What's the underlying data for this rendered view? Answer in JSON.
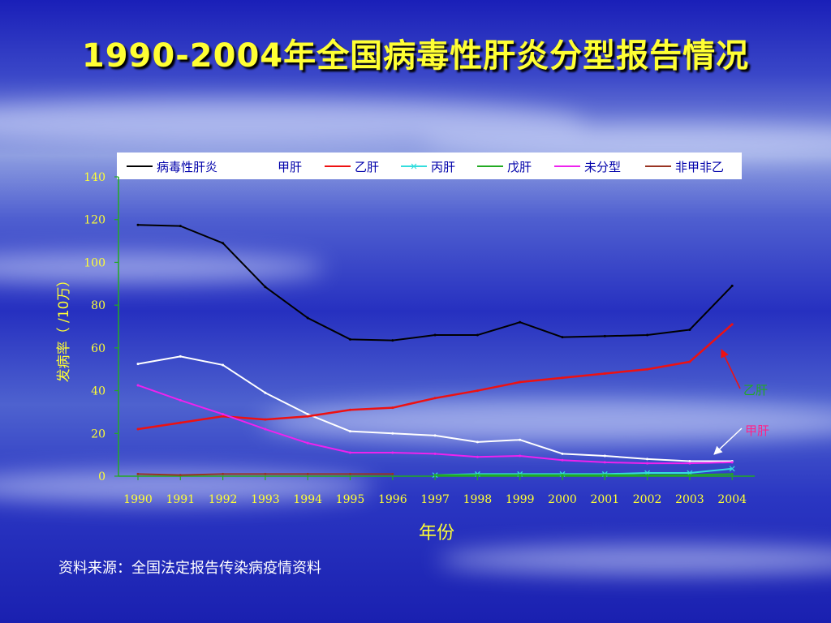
{
  "slide": {
    "title": "1990-2004年全国病毒性肝炎分型报告情况",
    "source": "资料来源：全国法定报告传染病疫情资料"
  },
  "colors": {
    "title": "#ffff33",
    "axis": "#22aa22",
    "tick_label": "#ffff33",
    "annotation": "#ff2288"
  },
  "chart_data": {
    "type": "line",
    "xlabel": "年份",
    "ylabel": "发病率（ /10万）",
    "ylim": [
      0,
      140
    ],
    "yticks": [
      0,
      20,
      40,
      60,
      80,
      100,
      120,
      140
    ],
    "categories": [
      "1990",
      "1991",
      "1992",
      "1993",
      "1994",
      "1995",
      "1996",
      "1997",
      "1998",
      "1999",
      "2000",
      "2001",
      "2002",
      "2003",
      "2004"
    ],
    "legend_position": "top",
    "grid": false,
    "series": [
      {
        "name": "病毒性肝炎",
        "color": "#000000",
        "marker": "none",
        "values": [
          117.5,
          117,
          109,
          88.5,
          74,
          64,
          63.5,
          66,
          66,
          72,
          65,
          65.5,
          66,
          68.5,
          89
        ]
      },
      {
        "name": "甲肝",
        "color": "#ffffff",
        "marker": "none",
        "values": [
          52.5,
          56,
          52,
          39,
          29,
          21,
          20,
          19,
          16,
          17,
          10.5,
          9.5,
          8,
          7,
          7
        ]
      },
      {
        "name": "乙肝",
        "color": "#ee1111",
        "marker": "none",
        "values": [
          22,
          25,
          28,
          26.5,
          28,
          31,
          32,
          36.5,
          40,
          44,
          46,
          48,
          50,
          53.5,
          71
        ]
      },
      {
        "name": "丙肝",
        "color": "#33dddd",
        "marker": "x",
        "values": [
          null,
          null,
          null,
          null,
          null,
          null,
          null,
          0.5,
          1,
          1,
          1,
          1,
          1.5,
          1.5,
          3.5
        ]
      },
      {
        "name": "戊肝",
        "color": "#22aa22",
        "marker": "none",
        "values": [
          null,
          null,
          null,
          null,
          null,
          null,
          null,
          0.5,
          0.5,
          0.5,
          0.5,
          0.5,
          0.5,
          0.5,
          1
        ]
      },
      {
        "name": "未分型",
        "color": "#ee22ee",
        "marker": "none",
        "values": [
          42.5,
          35.5,
          29,
          22,
          15.5,
          11,
          11,
          10.5,
          9,
          9.5,
          7.5,
          6.5,
          6,
          6,
          6.5
        ]
      },
      {
        "name": "非甲非乙",
        "color": "#993322",
        "marker": "none",
        "values": [
          1,
          0.5,
          1,
          1,
          1,
          1,
          1,
          null,
          null,
          null,
          null,
          null,
          null,
          null,
          null
        ]
      }
    ],
    "annotations": [
      {
        "text": "乙肝",
        "target_series": "乙肝",
        "target_index": 14,
        "text_color": "#22aa22"
      },
      {
        "text": "甲肝",
        "target_series": "甲肝",
        "target_index": 14,
        "text_color": "#ff2288"
      }
    ]
  }
}
